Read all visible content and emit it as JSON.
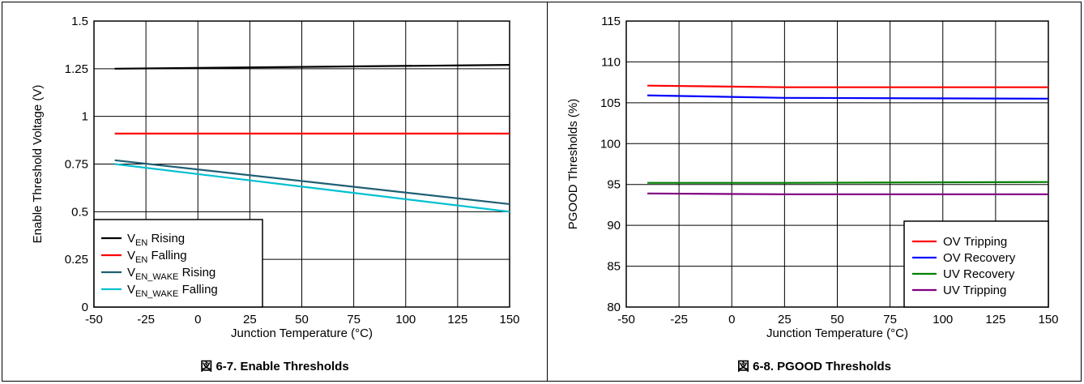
{
  "chart_data": [
    {
      "type": "line",
      "caption": "図 6-7. Enable Thresholds",
      "xlabel": "Junction Temperature (°C)",
      "ylabel": "Enable Threshold Voltage (V)",
      "xlim": [
        -50,
        150
      ],
      "ylim": [
        0,
        1.5
      ],
      "xticks": [
        -50,
        -25,
        0,
        25,
        50,
        75,
        100,
        125,
        150
      ],
      "yticks": [
        0,
        0.25,
        0.5,
        0.75,
        1,
        1.25,
        1.5
      ],
      "ytick_labels": [
        "0",
        "0.25",
        "0.5",
        "0.75",
        "1",
        "1.25",
        "1.5"
      ],
      "grid": true,
      "legend_position": "bottom-left",
      "series": [
        {
          "name": "VEN Rising",
          "label_main": "V",
          "label_sub": "EN",
          "label_rest": " Rising",
          "color": "#000000",
          "x": [
            -40,
            150
          ],
          "y": [
            1.25,
            1.27
          ]
        },
        {
          "name": "VEN Falling",
          "label_main": "V",
          "label_sub": "EN",
          "label_rest": " Falling",
          "color": "#ff0000",
          "x": [
            -40,
            150
          ],
          "y": [
            0.91,
            0.91
          ]
        },
        {
          "name": "VEN_WAKE Rising",
          "label_main": "V",
          "label_sub": "EN_WAKE",
          "label_rest": " Rising",
          "color": "#1f5f73",
          "x": [
            -40,
            150
          ],
          "y": [
            0.77,
            0.54
          ]
        },
        {
          "name": "VEN_WAKE Falling",
          "label_main": "V",
          "label_sub": "EN_WAKE",
          "label_rest": " Falling",
          "color": "#00c0d0",
          "x": [
            -40,
            150
          ],
          "y": [
            0.75,
            0.5
          ]
        }
      ]
    },
    {
      "type": "line",
      "caption": "図 6-8. PGOOD Thresholds",
      "xlabel": "Junction Temperature (°C)",
      "ylabel": "PGOOD Thresholds (%)",
      "xlim": [
        -50,
        150
      ],
      "ylim": [
        80,
        115
      ],
      "xticks": [
        -50,
        -25,
        0,
        25,
        50,
        75,
        100,
        125,
        150
      ],
      "yticks": [
        80,
        85,
        90,
        95,
        100,
        105,
        110,
        115
      ],
      "ytick_labels": [
        "80",
        "85",
        "90",
        "95",
        "100",
        "105",
        "110",
        "115"
      ],
      "grid": true,
      "legend_position": "bottom-right",
      "series": [
        {
          "name": "OV Tripping",
          "label_main": "OV Tripping",
          "label_sub": "",
          "label_rest": "",
          "color": "#ff0000",
          "x": [
            -40,
            25,
            150
          ],
          "y": [
            107.1,
            106.9,
            106.9
          ]
        },
        {
          "name": "OV Recovery",
          "label_main": "OV Recovery",
          "label_sub": "",
          "label_rest": "",
          "color": "#0000ff",
          "x": [
            -40,
            25,
            150
          ],
          "y": [
            105.9,
            105.6,
            105.5
          ]
        },
        {
          "name": "UV Recovery",
          "label_main": "UV Recovery",
          "label_sub": "",
          "label_rest": "",
          "color": "#008000",
          "x": [
            -40,
            25,
            150
          ],
          "y": [
            95.2,
            95.2,
            95.3
          ]
        },
        {
          "name": "UV Tripping",
          "label_main": "UV Tripping",
          "label_sub": "",
          "label_rest": "",
          "color": "#800080",
          "x": [
            -40,
            25,
            150
          ],
          "y": [
            93.9,
            93.8,
            93.8
          ]
        }
      ]
    }
  ]
}
